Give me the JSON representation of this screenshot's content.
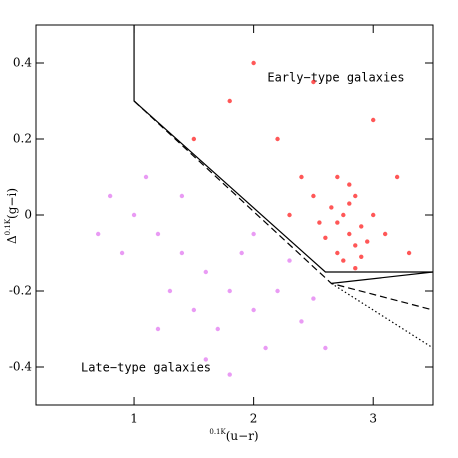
{
  "chart_data": {
    "type": "scatter",
    "x_label_prefix": "0.1K",
    "x_label": "(u−r)",
    "y_label_prefix": "Δ",
    "y_label_super": "0.1K",
    "y_label": "(g−i)",
    "annotations": [
      "Early−type galaxies",
      "Late−type galaxies"
    ],
    "xlim": [
      0.18,
      3.5
    ],
    "ylim": [
      -0.5,
      0.5
    ],
    "xticks": [
      1,
      2,
      3
    ],
    "yticks": [
      -0.4,
      -0.2,
      0,
      0.2,
      0.4
    ],
    "series": [
      {
        "color": "#ff1010",
        "x": [
          2.8,
          2.7,
          2.85,
          2.75,
          2.9,
          2.6,
          2.8,
          2.7,
          2.95,
          2.65,
          2.85,
          2.75,
          3.0,
          2.55,
          2.9,
          2.8,
          2.5,
          3.1,
          2.7,
          2.4,
          2.2,
          3.2,
          1.8,
          2.5,
          3.0,
          1.5,
          2.0,
          3.3,
          2.3,
          2.85
        ],
        "y": [
          -0.05,
          -0.02,
          -0.08,
          0.0,
          -0.03,
          -0.06,
          0.03,
          -0.1,
          -0.07,
          0.02,
          0.05,
          -0.12,
          0.0,
          -0.02,
          -0.11,
          0.08,
          0.05,
          -0.05,
          0.1,
          0.1,
          0.2,
          0.1,
          0.3,
          0.35,
          0.25,
          0.2,
          0.4,
          -0.1,
          0.0,
          -0.14
        ]
      },
      {
        "color": "#e070f0",
        "x": [
          1.8,
          1.6,
          2.0,
          1.4,
          2.2,
          1.7,
          1.2,
          2.4,
          1.9,
          1.5,
          1.0,
          2.1,
          1.3,
          0.9,
          2.5,
          1.6,
          1.1,
          0.8,
          2.3,
          1.8,
          0.7,
          2.6,
          1.4,
          2.0,
          1.2
        ],
        "y": [
          -0.2,
          -0.15,
          -0.25,
          -0.1,
          -0.2,
          -0.3,
          -0.05,
          -0.28,
          -0.1,
          -0.25,
          0.0,
          -0.35,
          -0.2,
          -0.1,
          -0.22,
          -0.38,
          0.1,
          0.05,
          -0.12,
          -0.42,
          -0.05,
          -0.35,
          0.05,
          -0.05,
          -0.3
        ]
      }
    ],
    "lines": [
      {
        "style": "solid",
        "x": [
          1,
          1,
          2.6,
          3.5
        ],
        "y": [
          0.5,
          0.3,
          -0.15,
          -0.15
        ]
      },
      {
        "style": "solid",
        "x": [
          2.65,
          3.5
        ],
        "y": [
          -0.18,
          -0.15
        ]
      },
      {
        "style": "dashed",
        "x": [
          1,
          2.65,
          3.5
        ],
        "y": [
          0.3,
          -0.18,
          -0.25
        ]
      },
      {
        "style": "dotted",
        "x": [
          2.65,
          3.5
        ],
        "y": [
          -0.18,
          -0.35
        ]
      }
    ]
  }
}
